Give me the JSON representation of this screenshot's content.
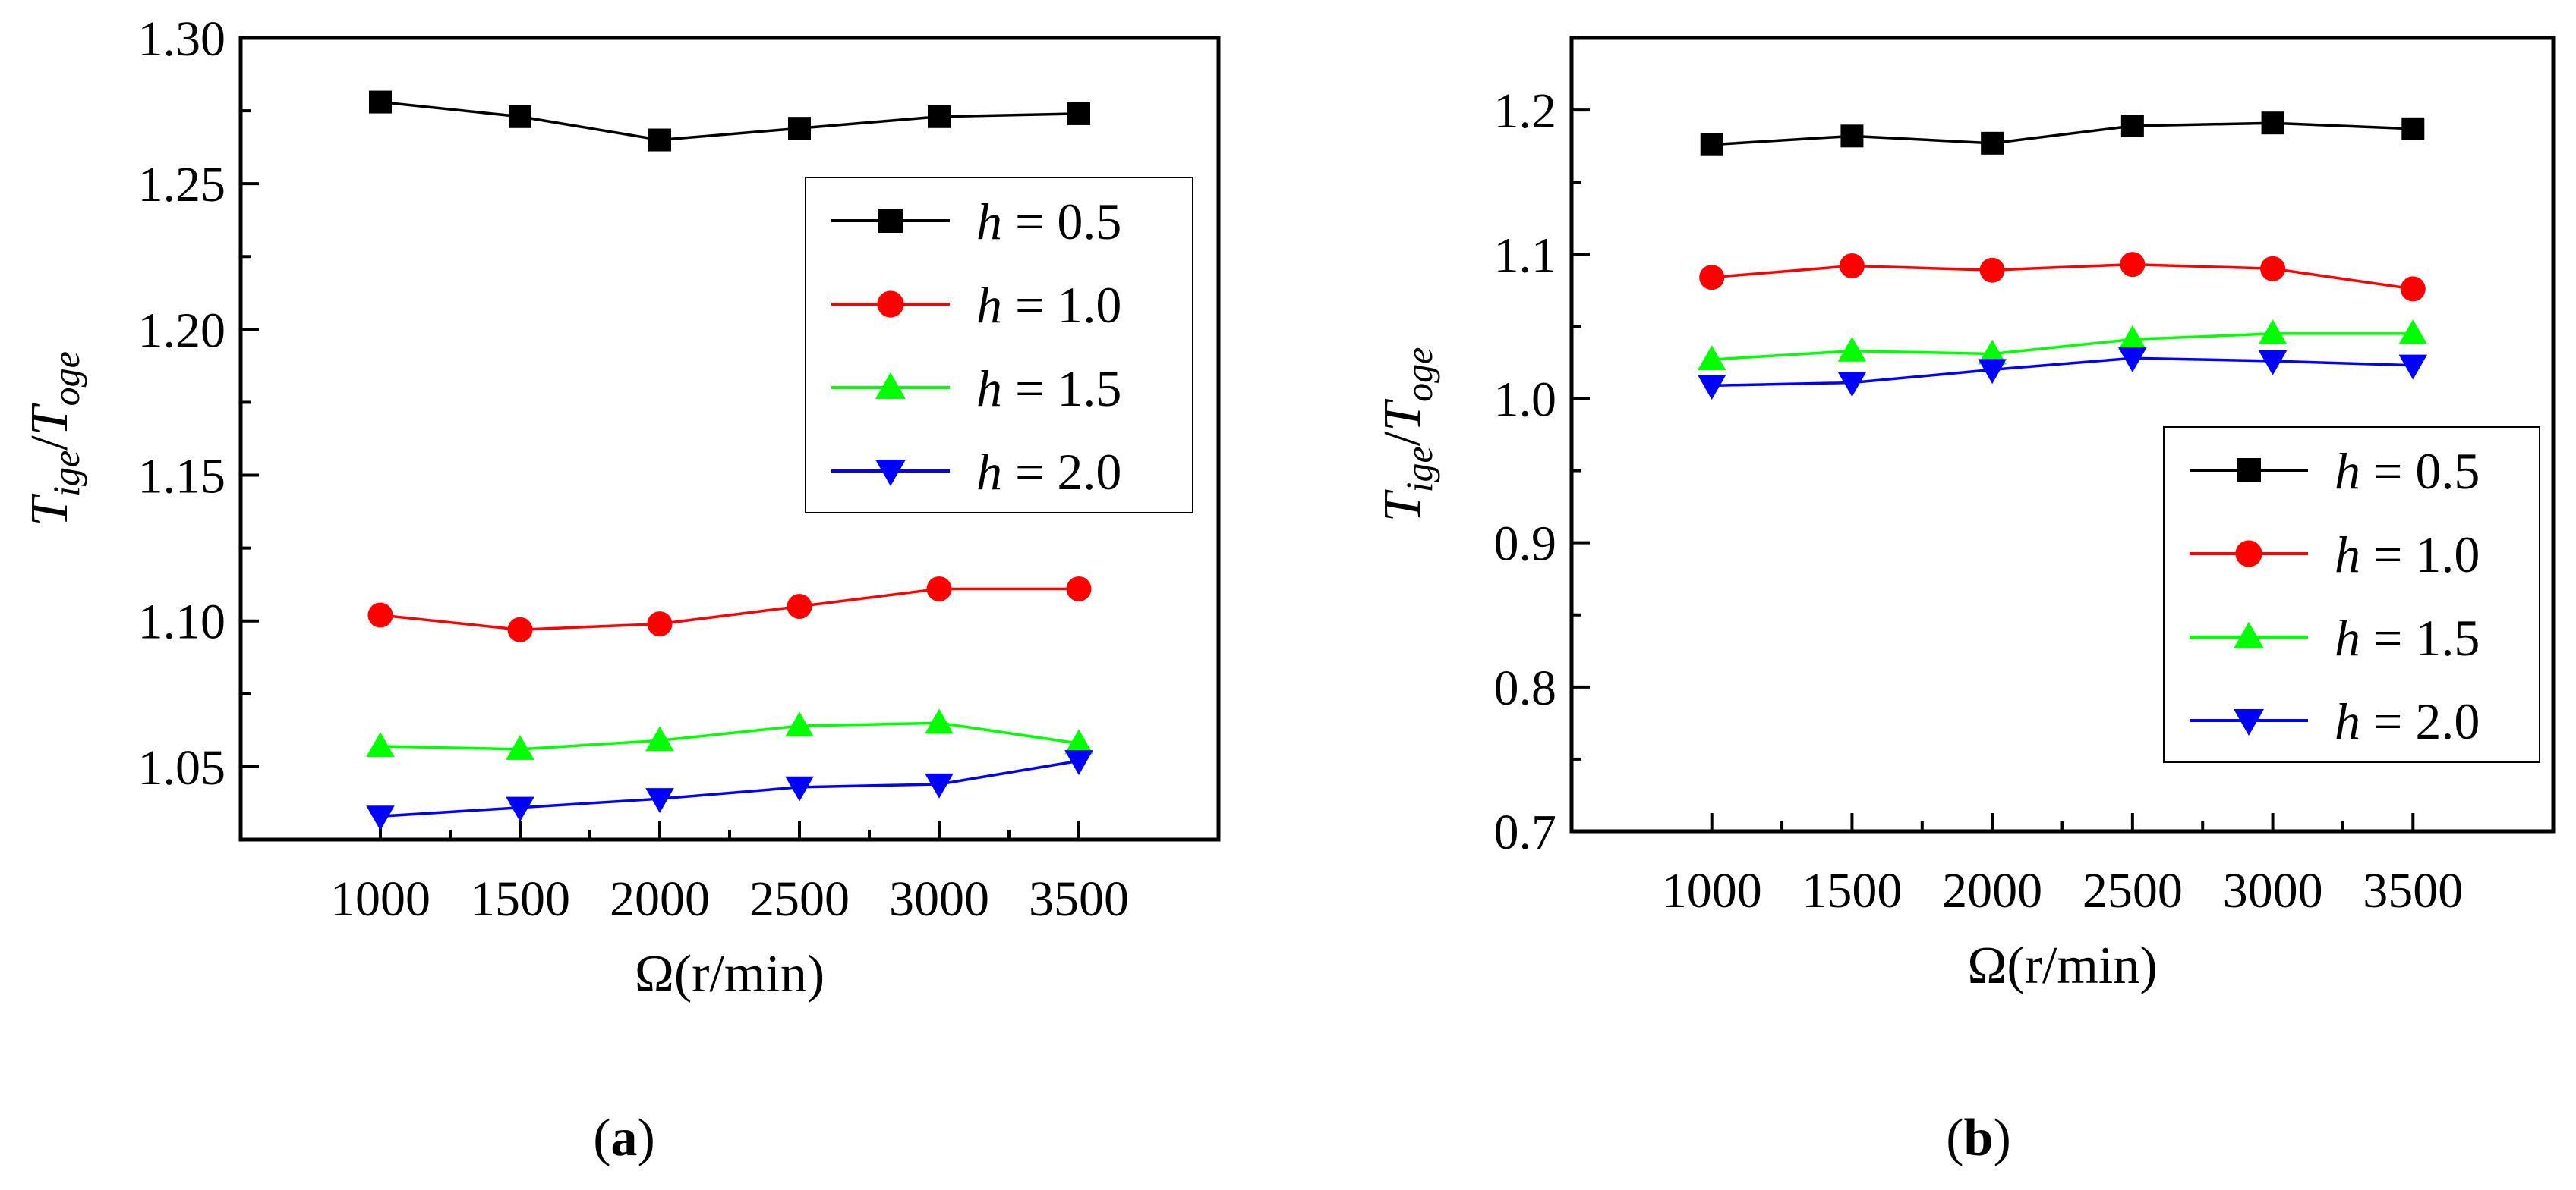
{
  "chart_data": [
    {
      "type": "line",
      "panel": "a",
      "xlabel": "Ω(r/min)",
      "ylabel": {
        "T1": "T",
        "sub1": "ige",
        "slash": "/",
        "T2": "T",
        "sub2": "oge"
      },
      "x": [
        1000,
        1500,
        2000,
        2500,
        3000,
        3500
      ],
      "xticks": [
        1000,
        1500,
        2000,
        2500,
        3000,
        3500
      ],
      "xlim": [
        500,
        4000
      ],
      "yticks": [
        "1.05",
        "1.10",
        "1.15",
        "1.20",
        "1.25",
        "1.30"
      ],
      "ylim": [
        1.025,
        1.3
      ],
      "legend_position": "right",
      "series": [
        {
          "h": "h",
          "eq": " = 0.5",
          "marker": "square",
          "color": "#000000",
          "values": [
            1.278,
            1.273,
            1.265,
            1.269,
            1.273,
            1.274
          ]
        },
        {
          "h": "h",
          "eq": " = 1.0",
          "marker": "circle",
          "color": "#ff0000",
          "values": [
            1.102,
            1.097,
            1.099,
            1.105,
            1.111,
            1.111
          ]
        },
        {
          "h": "h",
          "eq": " = 1.5",
          "marker": "triangle-up",
          "color": "#00ff00",
          "values": [
            1.057,
            1.056,
            1.059,
            1.064,
            1.065,
            1.058
          ]
        },
        {
          "h": "h",
          "eq": " = 2.0",
          "marker": "triangle-down",
          "color": "#0000ff",
          "values": [
            1.033,
            1.036,
            1.039,
            1.043,
            1.044,
            1.052
          ]
        }
      ],
      "caption": {
        "open": "(",
        "letter": "a",
        "close": ")"
      }
    },
    {
      "type": "line",
      "panel": "b",
      "xlabel": "Ω(r/min)",
      "ylabel": {
        "T1": "T",
        "sub1": "ige",
        "slash": "/",
        "T2": "T",
        "sub2": "oge"
      },
      "x": [
        1000,
        1500,
        2000,
        2500,
        3000,
        3500
      ],
      "xticks": [
        1000,
        1500,
        2000,
        2500,
        3000,
        3500
      ],
      "xlim": [
        500,
        4000
      ],
      "yticks": [
        "0.7",
        "0.8",
        "0.9",
        "1.0",
        "1.1",
        "1.2"
      ],
      "ylim": [
        0.7,
        1.25
      ],
      "legend_position": "bottom-right",
      "series": [
        {
          "h": "h",
          "eq": " = 0.5",
          "marker": "square",
          "color": "#000000",
          "values": [
            1.176,
            1.182,
            1.177,
            1.189,
            1.191,
            1.187
          ]
        },
        {
          "h": "h",
          "eq": " = 1.0",
          "marker": "circle",
          "color": "#ff0000",
          "values": [
            1.084,
            1.092,
            1.089,
            1.093,
            1.09,
            1.076
          ]
        },
        {
          "h": "h",
          "eq": " = 1.5",
          "marker": "triangle-up",
          "color": "#00ff00",
          "values": [
            1.027,
            1.033,
            1.031,
            1.041,
            1.045,
            1.045
          ]
        },
        {
          "h": "h",
          "eq": " = 2.0",
          "marker": "triangle-down",
          "color": "#0000ff",
          "values": [
            1.009,
            1.011,
            1.02,
            1.028,
            1.026,
            1.023
          ]
        }
      ],
      "caption": {
        "open": "(",
        "letter": "b",
        "close": ")"
      }
    }
  ]
}
